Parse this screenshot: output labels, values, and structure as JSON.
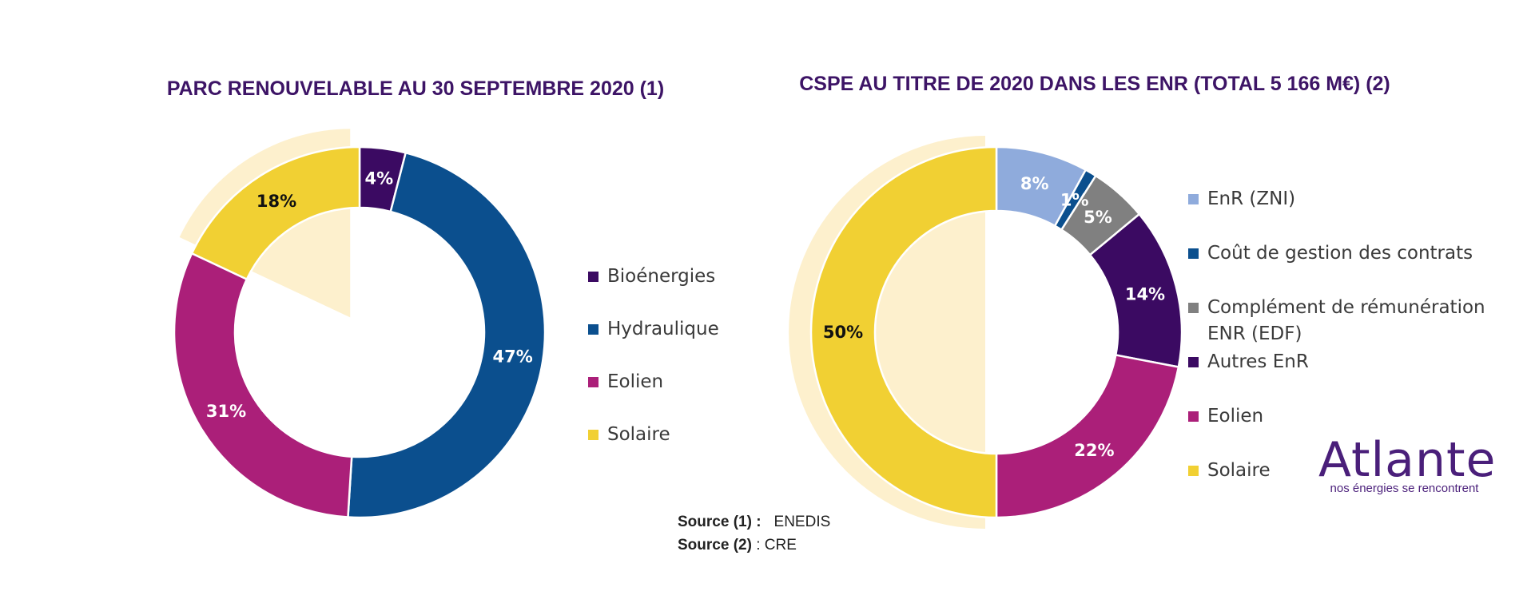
{
  "chart_data": [
    {
      "type": "pie",
      "title": "PARC RENOUVELABLE AU 30 SEPTEMBRE 2020 (1)",
      "categories": [
        "Bioénergies",
        "Hydraulique",
        "Eolien",
        "Solaire"
      ],
      "values": [
        4,
        47,
        31,
        18
      ],
      "labels": [
        "4%",
        "47%",
        "31%",
        "18%"
      ],
      "colors": [
        "#3b0a62",
        "#0b4f8e",
        "#ab1f79",
        "#f1d033"
      ],
      "label_colors": [
        "#ffffff",
        "#ffffff",
        "#ffffff",
        "#111111"
      ],
      "highlighted": "Solaire",
      "legend_position": "right"
    },
    {
      "type": "pie",
      "title": "CSPE AU TITRE DE 2020 DANS LES ENR (TOTAL 5 166 M€) (2)",
      "categories": [
        "EnR (ZNI)",
        "Coût de gestion des contrats",
        "Complément de rémunération ENR (EDF)",
        "Autres EnR",
        "Eolien",
        "Solaire"
      ],
      "legend_lines": [
        [
          "EnR (ZNI)"
        ],
        [
          "Coût de gestion des contrats"
        ],
        [
          "Complément de rémunération",
          "ENR (EDF)"
        ],
        [
          "Autres EnR"
        ],
        [
          "Eolien"
        ],
        [
          "Solaire"
        ]
      ],
      "values": [
        8,
        1,
        5,
        14,
        22,
        50
      ],
      "labels": [
        "8%",
        "1%",
        "5%",
        "14%",
        "22%",
        "50%"
      ],
      "colors": [
        "#8fabdc",
        "#0b4f8e",
        "#808080",
        "#3b0a62",
        "#ab1f79",
        "#f1d033"
      ],
      "label_colors": [
        "#ffffff",
        "#ffffff",
        "#ffffff",
        "#ffffff",
        "#ffffff",
        "#111111"
      ],
      "highlighted": "Solaire",
      "legend_position": "right"
    }
  ],
  "sources": [
    {
      "label": "Source (1) :",
      "value": "ENEDIS"
    },
    {
      "label": "Source (2)",
      "value": " : CRE"
    }
  ],
  "logo": {
    "name": "Atlante",
    "tagline": "nos énergies se rencontrent"
  },
  "colors": {
    "title": "#3d1466",
    "highlight_fill": "#fdf0cd",
    "text": "#3a3a3a"
  }
}
